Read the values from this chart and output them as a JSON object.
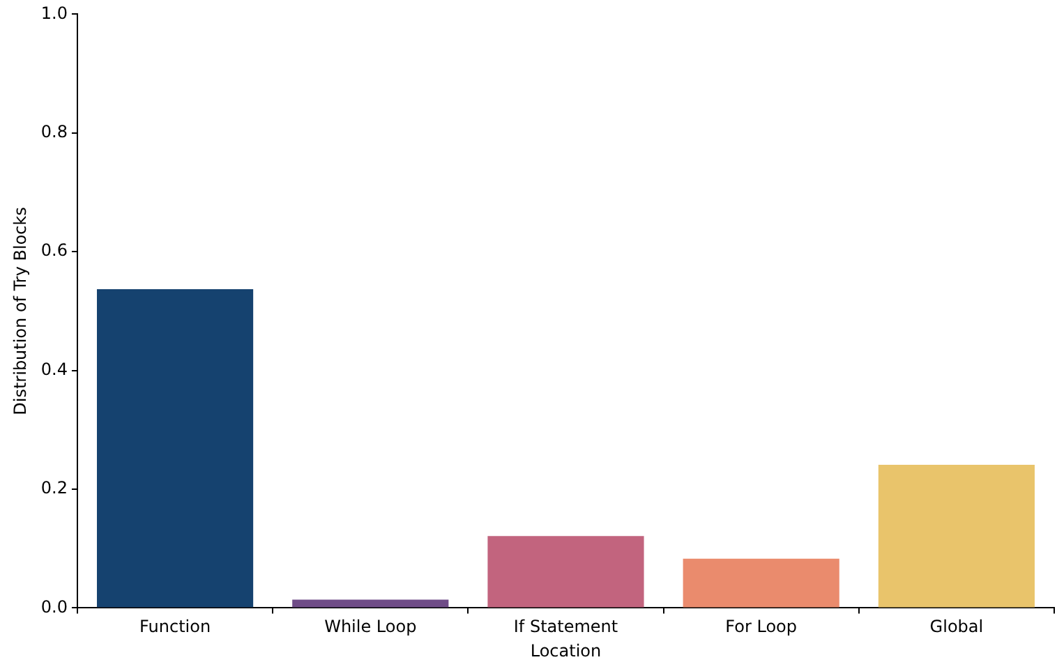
{
  "chart_data": {
    "type": "bar",
    "categories": [
      "Function",
      "While Loop",
      "If Statement",
      "For Loop",
      "Global"
    ],
    "values": [
      0.537,
      0.014,
      0.121,
      0.083,
      0.241
    ],
    "colors": [
      "#15426f",
      "#6f4c87",
      "#c2647e",
      "#ea8b6d",
      "#e9c46b"
    ],
    "xlabel": "Location",
    "ylabel": "Distribution of Try Blocks",
    "ylim": [
      0,
      1
    ],
    "yticks": [
      {
        "value": 0,
        "label": "0.0"
      },
      0.2,
      0.4,
      0.6,
      0.8,
      {
        "value": 1,
        "label": "1.0"
      }
    ],
    "grid": false,
    "legend": false
  }
}
